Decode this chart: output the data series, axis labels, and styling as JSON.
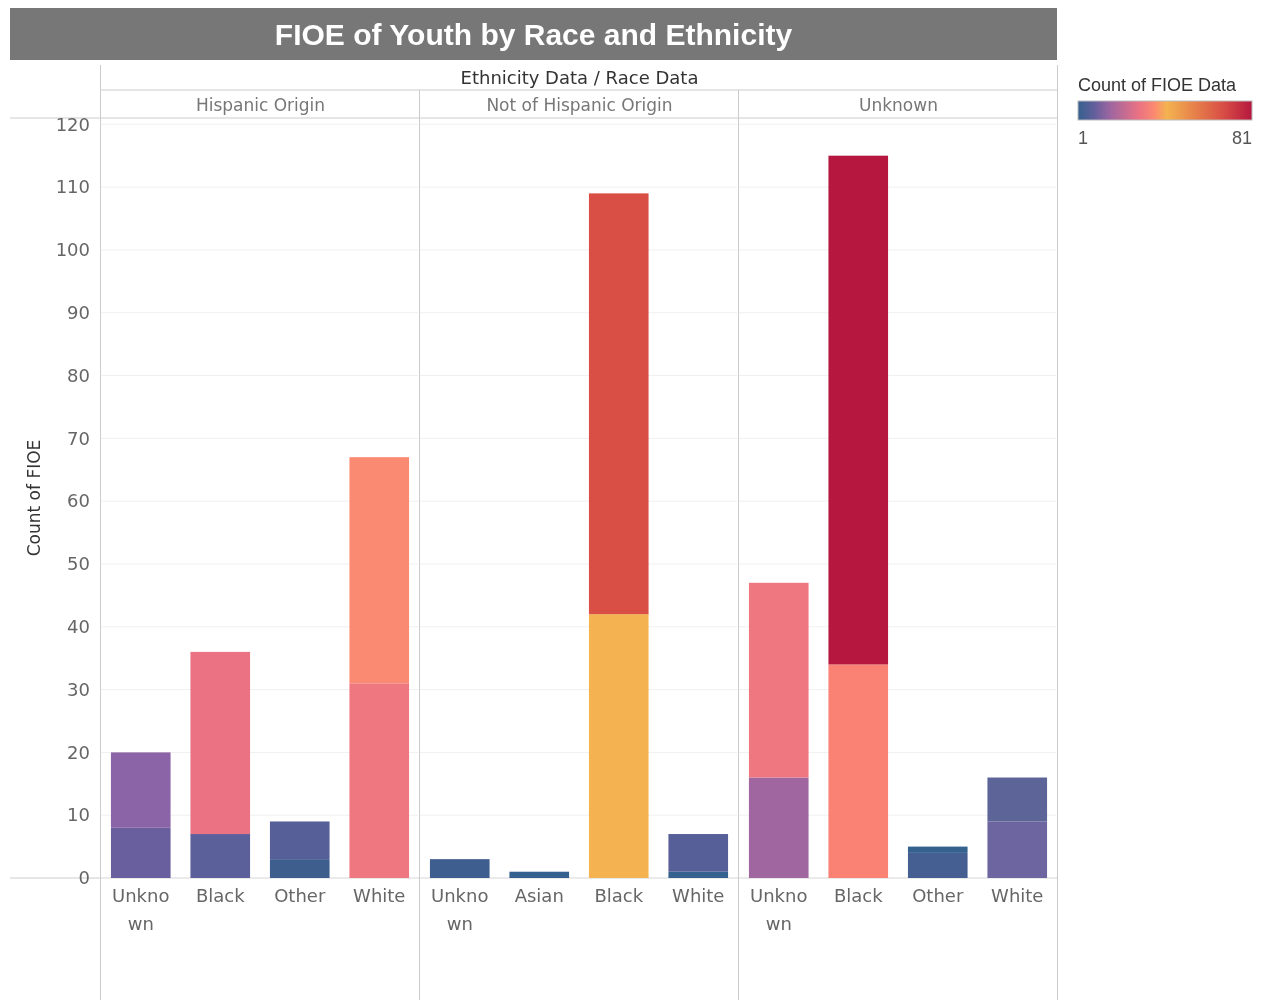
{
  "chart_data": [
    {
      "type": "bar",
      "title": "FIOE of Youth by Race and Ethnicity",
      "subtitle": "Hispanic Origin",
      "annotations": [
        "Ethnicity Data / Race Data"
      ],
      "ylabel": "Count of FIOE",
      "categories": [
        "Unknown",
        "Black",
        "Other",
        "White"
      ],
      "stacked": true,
      "series": [
        {
          "values": [
            8,
            7,
            3,
            31
          ],
          "colors": [
            "#6a5f9e",
            "#5b5f9a",
            "#3e5f8e",
            "#ef7880"
          ]
        },
        {
          "values": [
            12,
            29,
            6,
            36
          ],
          "colors": [
            "#8a64a6",
            "#ea7283",
            "#565f98",
            "#fb8a72"
          ]
        }
      ],
      "ylim": [
        0,
        121
      ],
      "yticks": [
        0,
        10,
        20,
        30,
        40,
        50,
        60,
        70,
        80,
        90,
        100,
        110,
        120
      ],
      "grid": "y"
    },
    {
      "type": "bar",
      "subtitle": "Not of Hispanic Origin",
      "categories": [
        "Unknown",
        "Asian",
        "Black",
        "White"
      ],
      "stacked": true,
      "series": [
        {
          "values": [
            3,
            1,
            42,
            1
          ],
          "colors": [
            "#3d5e8e",
            "#35618f",
            "#f4b350",
            "#35618f"
          ]
        },
        {
          "values": [
            null,
            null,
            67,
            6
          ],
          "colors": [
            null,
            null,
            "#d94f45",
            "#565f98"
          ]
        }
      ],
      "ylim": [
        0,
        121
      ],
      "yticks": [
        0,
        10,
        20,
        30,
        40,
        50,
        60,
        70,
        80,
        90,
        100,
        110,
        120
      ],
      "grid": "y",
      "tick_labels": "x"
    },
    {
      "type": "bar",
      "subtitle": "Unknown",
      "categories": [
        "Unknown",
        "Black",
        "Other",
        "White"
      ],
      "stacked": true,
      "series": [
        {
          "values": [
            16,
            34,
            4,
            9
          ],
          "colors": [
            "#a066a0",
            "#f98274",
            "#465f93",
            "#6d65a0"
          ]
        },
        {
          "values": [
            31,
            81,
            1,
            7
          ],
          "colors": [
            "#ef7880",
            "#b5173e",
            "#35618f",
            "#5c6498"
          ]
        }
      ],
      "ylim": [
        0,
        121
      ],
      "yticks": [
        0,
        10,
        20,
        30,
        40,
        50,
        60,
        70,
        80,
        90,
        100,
        110,
        120
      ],
      "grid": "y",
      "tick_labels": "x",
      "clim": [
        1,
        81
      ],
      "clabel": "Count of FIOE Data",
      "cticks": [
        1,
        81
      ]
    }
  ]
}
